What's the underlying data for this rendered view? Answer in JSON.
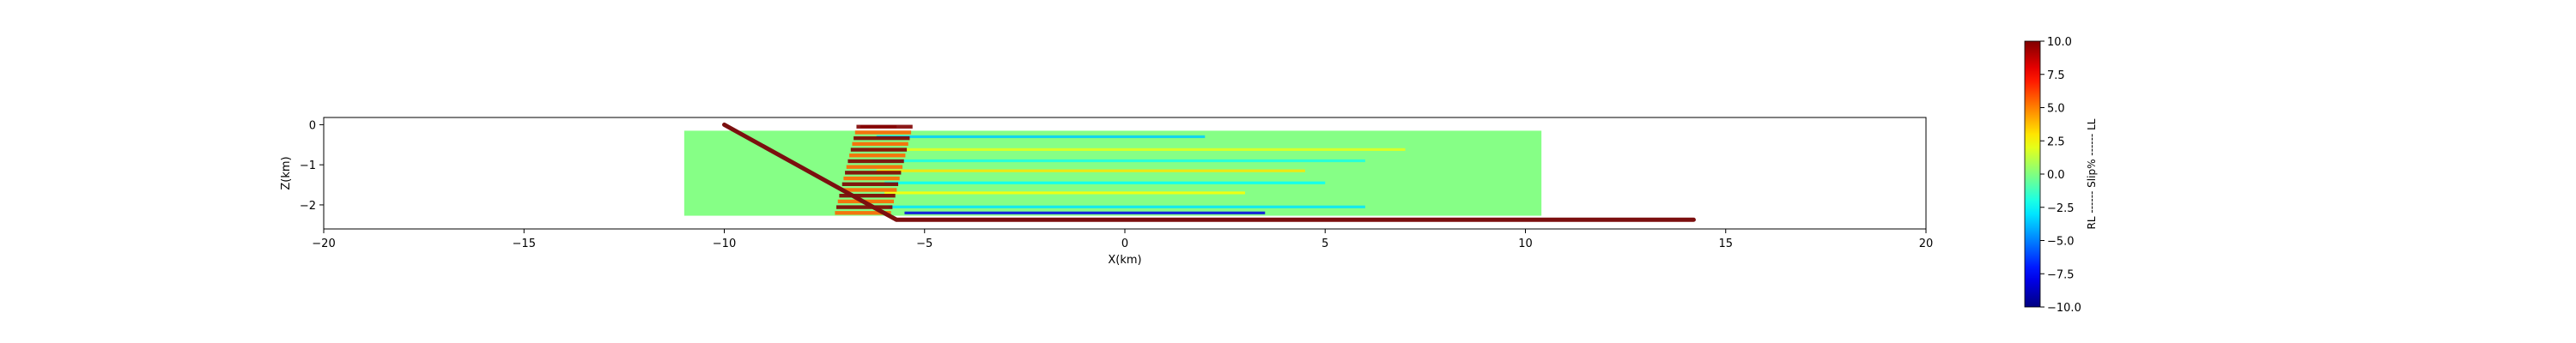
{
  "chart_data": {
    "type": "heatmap",
    "xlabel": "X(km)",
    "ylabel": "Z(km)",
    "xlim": [
      -20,
      20
    ],
    "ylim": [
      -2.6,
      0.18
    ],
    "x_ticks": [
      -20,
      -15,
      -10,
      -5,
      0,
      5,
      10,
      15,
      20
    ],
    "y_ticks": [
      0,
      -1,
      -2
    ],
    "grid": false,
    "background_region": {
      "x": [
        -11,
        10.4
      ],
      "z": [
        -2.27,
        -0.15
      ],
      "value": 0
    },
    "fault_trace": {
      "color": "#7b0f0f",
      "points": [
        [
          -10.0,
          0.0
        ],
        [
          -6.2,
          -2.1
        ],
        [
          -5.7,
          -2.37
        ],
        [
          14.2,
          -2.37
        ]
      ]
    },
    "slip_streaks": [
      {
        "z": -0.05,
        "x_start": -6.6,
        "x_end": -5.7,
        "value": 9.0
      },
      {
        "z": -0.3,
        "x_start": -6.2,
        "x_end": 2.0,
        "value": -3.5
      },
      {
        "z": -0.62,
        "x_start": -6.4,
        "x_end": 7.0,
        "value": 2.0
      },
      {
        "z": -0.9,
        "x_start": -6.3,
        "x_end": 6.0,
        "value": -2.0
      },
      {
        "z": -1.15,
        "x_start": -6.2,
        "x_end": 4.5,
        "value": 3.0
      },
      {
        "z": -1.45,
        "x_start": -6.0,
        "x_end": 5.0,
        "value": -2.5
      },
      {
        "z": -1.7,
        "x_start": -6.0,
        "x_end": 3.0,
        "value": 2.5
      },
      {
        "z": -2.05,
        "x_start": -5.9,
        "x_end": 6.0,
        "value": -3.0
      },
      {
        "z": -2.2,
        "x_start": -5.5,
        "x_end": 3.5,
        "value": -8.0
      }
    ],
    "high_slip_zone": {
      "x_center": -6.0,
      "z_top": -0.05,
      "z_bottom": -2.2,
      "peak_value": 10.0
    },
    "colorbar": {
      "label": "RL ------ Slip% ------ LL",
      "min": -10.0,
      "max": 10.0,
      "colormap": "jet",
      "ticks": [
        "10.0",
        "7.5",
        "5.0",
        "2.5",
        "0.0",
        "−2.5",
        "−5.0",
        "−7.5",
        "−10.0"
      ]
    }
  }
}
